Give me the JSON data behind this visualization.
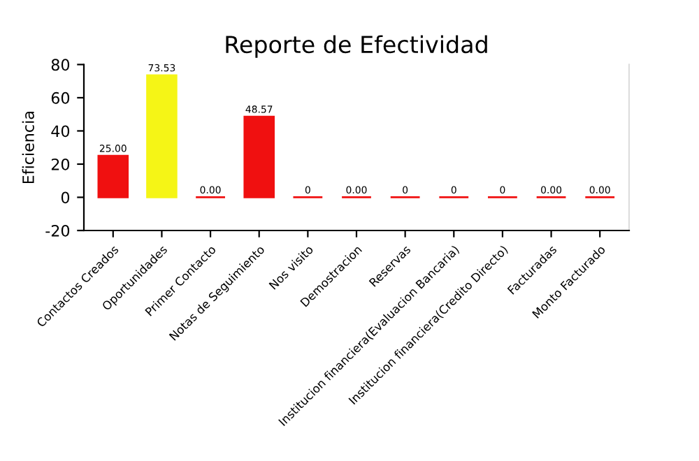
{
  "chart_data": {
    "type": "bar",
    "title": "Reporte de Efectividad",
    "ylabel": "Eficiencia",
    "categories": [
      "Contactos Creados",
      "Oportunidades",
      "Primer Contacto",
      "Notas de Seguimiento",
      "Nos visito",
      "Demostracion",
      "Reservas",
      "Institucion financiera(Evaluacion Bancaria)",
      "Institucion financiera(Credito Directo)",
      "Facturadas",
      "Monto Facturado"
    ],
    "values": [
      25,
      73.53,
      0,
      48.57,
      0,
      0,
      0,
      0,
      0,
      0,
      0
    ],
    "colors": [
      "#f01010",
      "#f5f516",
      "#f01010",
      "#f01010",
      "#f01010",
      "#f01010",
      "#f01010",
      "#f01010",
      "#f01010",
      "#f01010",
      "#f01010"
    ],
    "value_labels": [
      "25.00",
      "73.53",
      "0.00",
      "48.57",
      "0",
      "0.00",
      "0",
      "0",
      "0",
      "0.00",
      "0.00"
    ],
    "ylim": [
      -20,
      80
    ],
    "yticks": [
      -20,
      0,
      20,
      40,
      60,
      80
    ],
    "grid": false,
    "legend": false
  }
}
